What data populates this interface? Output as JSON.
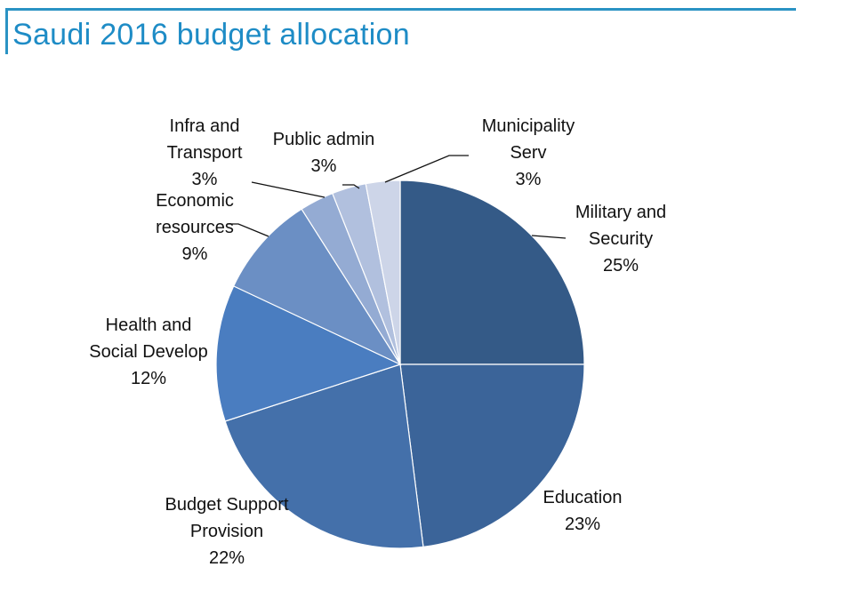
{
  "title": "Saudi 2016 budget allocation",
  "colors": {
    "accent": "#1e8cc6"
  },
  "chart_data": {
    "type": "pie",
    "title": "Saudi 2016 budget allocation",
    "start": "top, clockwise",
    "slices": [
      {
        "label": [
          "Military and",
          "Security"
        ],
        "pct_label": "25%",
        "value": 25,
        "color": "#345a87"
      },
      {
        "label": [
          "Education"
        ],
        "pct_label": "23%",
        "value": 23,
        "color": "#3b6499"
      },
      {
        "label": [
          "Budget Support",
          "Provision"
        ],
        "pct_label": "22%",
        "value": 22,
        "color": "#4470aa"
      },
      {
        "label": [
          "Health and",
          "Social Develop"
        ],
        "pct_label": "12%",
        "value": 12,
        "color": "#4a7dc0"
      },
      {
        "label": [
          "Economic",
          "resources"
        ],
        "pct_label": "9%",
        "value": 9,
        "color": "#6b8fc4"
      },
      {
        "label": [
          "Infra and",
          "Transport"
        ],
        "pct_label": "3%",
        "value": 3,
        "color": "#94abd3"
      },
      {
        "label": [
          "Public admin"
        ],
        "pct_label": "3%",
        "value": 3,
        "color": "#b1c0de"
      },
      {
        "label": [
          "Municipality",
          "Serv"
        ],
        "pct_label": "3%",
        "value": 3,
        "color": "#cdd5e8"
      }
    ]
  }
}
